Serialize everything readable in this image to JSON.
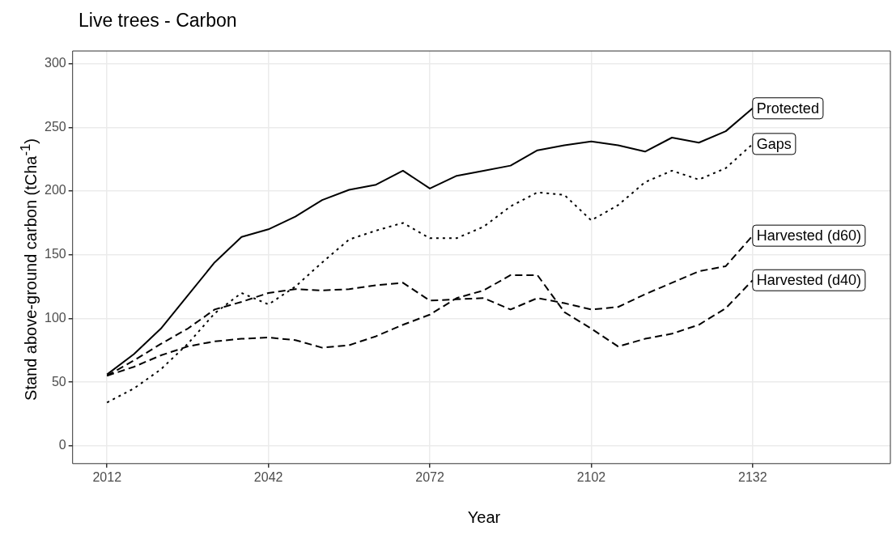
{
  "chart_data": {
    "type": "line",
    "title": "Live trees - Carbon",
    "xlabel": "Year",
    "ylabel": "Stand above-ground carbon (tCha$^{-1}$)",
    "x": [
      2012,
      2017,
      2022,
      2027,
      2032,
      2037,
      2042,
      2047,
      2052,
      2057,
      2062,
      2067,
      2072,
      2077,
      2082,
      2087,
      2092,
      2097,
      2102,
      2107,
      2112,
      2117,
      2122,
      2127,
      2132
    ],
    "series": [
      {
        "name": "Protected",
        "color": "#000000",
        "line_style": "solid",
        "values": [
          56,
          72,
          92,
          118,
          144,
          164,
          170,
          180,
          193,
          201,
          205,
          216,
          202,
          212,
          216,
          220,
          232,
          236,
          239,
          236,
          231,
          242,
          238,
          247,
          265
        ]
      },
      {
        "name": "Gaps",
        "color": "#000000",
        "line_style": "dotted",
        "values": [
          34,
          45,
          60,
          80,
          104,
          120,
          111,
          125,
          144,
          162,
          169,
          175,
          163,
          163,
          172,
          188,
          199,
          197,
          177,
          189,
          207,
          216,
          209,
          218,
          237
        ]
      },
      {
        "name": "Harvested (d60)",
        "color": "#000000",
        "line_style": "dashed",
        "values": [
          55,
          67,
          80,
          92,
          107,
          113,
          120,
          123,
          122,
          123,
          126,
          128,
          114,
          115,
          116,
          107,
          116,
          112,
          107,
          109,
          119,
          128,
          137,
          141,
          165
        ]
      },
      {
        "name": "Harvested (d40)",
        "color": "#000000",
        "line_style": "dashed",
        "values": [
          55,
          62,
          71,
          78,
          82,
          84,
          85,
          83,
          77,
          79,
          86,
          95,
          103,
          116,
          122,
          134,
          134,
          105,
          92,
          78,
          84,
          88,
          95,
          108,
          130
        ]
      }
    ],
    "xlim": [
      2005.6,
      2157.6
    ],
    "xticks": [
      2012,
      2042,
      2072,
      2102,
      2132
    ],
    "ylim": [
      -14,
      310
    ],
    "yticks": [
      0,
      50,
      100,
      150,
      200,
      250,
      300
    ],
    "grid": true,
    "marker": "none"
  }
}
